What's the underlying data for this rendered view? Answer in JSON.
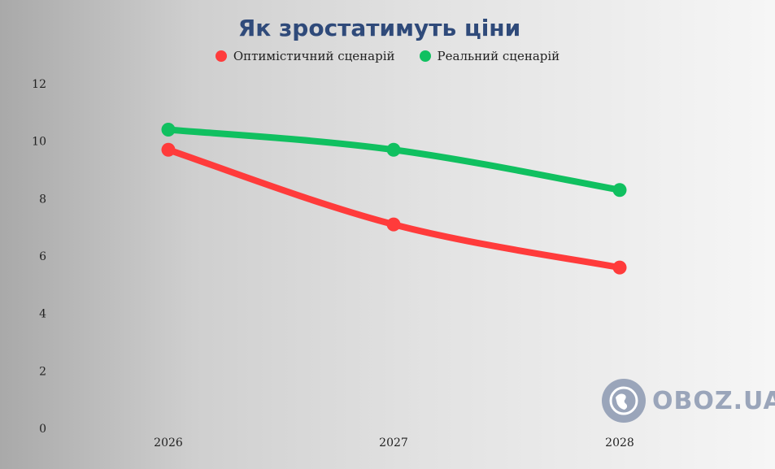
{
  "chart_data": {
    "type": "line",
    "title": "Як зростатимуть ціни",
    "categories": [
      "2026",
      "2027",
      "2028"
    ],
    "yticks": [
      "0",
      "2",
      "4",
      "6",
      "8",
      "10",
      "12"
    ],
    "ylim": [
      0,
      12
    ],
    "grid": false,
    "legend_position": "top",
    "series": [
      {
        "name": "Оптимістичний сценарій",
        "values": [
          9.7,
          7.1,
          5.6
        ],
        "color": "#ff3b3b"
      },
      {
        "name": "Реальний сценарій",
        "values": [
          10.4,
          9.7,
          8.3
        ],
        "color": "#10c060"
      }
    ]
  },
  "watermark": {
    "text": "OBOZ.UA",
    "icon": "globe-icon"
  }
}
